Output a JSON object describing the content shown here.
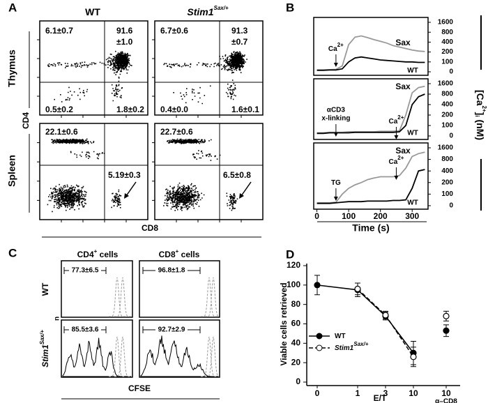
{
  "panel_a": {
    "letter": "A",
    "columns": [
      {
        "base": "WT"
      },
      {
        "base": "Stim1",
        "sup": "Sax/+"
      }
    ],
    "rows": [
      "Thymus",
      "Spleen"
    ],
    "y_label": "CD4",
    "x_label": "CD8",
    "plots": [
      {
        "labels": [
          [
            "6.1±0.7"
          ],
          [
            "91.6",
            "±1.0"
          ],
          [
            "0.5±0.2"
          ],
          [
            "1.8±0.2"
          ]
        ]
      },
      {
        "labels": [
          [
            "6.7±0.6"
          ],
          [
            "91.3",
            "±0.7"
          ],
          [
            "0.4±0.0"
          ],
          [
            "1.6±0.1"
          ]
        ]
      },
      {
        "labels": [
          [
            "22.1±0.6"
          ],
          [
            "5.19±0.3"
          ]
        ]
      },
      {
        "labels": [
          [
            "22.7±0.6"
          ],
          [
            "6.5±0.8"
          ]
        ]
      }
    ]
  },
  "panel_c": {
    "letter": "C",
    "columns": [
      {
        "base": "CD4",
        "sup": "+",
        "rest": " cells"
      },
      {
        "base": "CD8",
        "sup": "+",
        "rest": " cells"
      }
    ],
    "rows": [
      {
        "base": "WT"
      },
      {
        "base": "Stim1",
        "sup": "Sax/+"
      }
    ],
    "gates": [
      "77.3±6.5",
      "96.8±1.8",
      "85.5±3.6",
      "92.7±2.9"
    ],
    "y_label": "n",
    "x_label": "CFSE"
  },
  "chart_data": [
    {
      "type": "line",
      "letter": "B",
      "xlim": [
        -10,
        350
      ],
      "ylim": [
        0,
        1600
      ],
      "yticks": [
        0,
        100,
        200,
        400,
        800,
        1600
      ],
      "x": [
        0,
        20,
        40,
        60,
        80,
        100,
        120,
        140,
        160,
        180,
        200,
        220,
        240,
        260,
        280,
        300,
        320,
        340
      ],
      "series": [
        {
          "name": "Sax",
          "color": "#999999",
          "values": [
            20,
            20,
            22,
            25,
            60,
            350,
            600,
            650,
            580,
            500,
            430,
            380,
            330,
            300,
            270,
            240,
            220,
            210
          ]
        },
        {
          "name": "WT",
          "color": "#000000",
          "values": [
            15,
            15,
            18,
            18,
            30,
            100,
            140,
            150,
            140,
            130,
            120,
            115,
            110,
            105,
            100,
            100,
            95,
            95
          ]
        }
      ],
      "annotations": [
        {
          "text": "Ca",
          "sup": "2+",
          "x": 60
        }
      ]
    },
    {
      "type": "line",
      "xlim": [
        -10,
        350
      ],
      "ylim": [
        0,
        1600
      ],
      "yticks": [
        0,
        100,
        200,
        400,
        800,
        1600
      ],
      "ylabel": [
        "[Ca",
        "2+",
        "]",
        "i",
        " (nM)"
      ],
      "x": [
        0,
        20,
        40,
        60,
        80,
        100,
        120,
        140,
        160,
        180,
        200,
        220,
        240,
        260,
        280,
        300,
        320,
        340
      ],
      "series": [
        {
          "name": "Sax",
          "color": "#999999",
          "values": [
            30,
            30,
            35,
            35,
            35,
            40,
            40,
            40,
            40,
            40,
            45,
            45,
            45,
            50,
            200,
            900,
            1300,
            1400
          ]
        },
        {
          "name": "WT",
          "color": "#000000",
          "values": [
            25,
            25,
            30,
            30,
            30,
            30,
            35,
            35,
            35,
            35,
            35,
            35,
            35,
            40,
            100,
            400,
            700,
            800
          ]
        }
      ],
      "annotations": [
        {
          "lines": [
            "αCD3",
            "x-linking"
          ],
          "x": 60
        },
        {
          "text": "Ca",
          "sup": "2+",
          "x": 250
        }
      ]
    },
    {
      "type": "line",
      "xlim": [
        -10,
        350
      ],
      "ylim": [
        0,
        1600
      ],
      "yticks": [
        0,
        100,
        200,
        400,
        800,
        1600
      ],
      "xticks": [
        0,
        100,
        200,
        300
      ],
      "xlabel": "Time (s)",
      "x": [
        0,
        20,
        40,
        60,
        80,
        100,
        120,
        140,
        160,
        180,
        200,
        220,
        240,
        260,
        280,
        300,
        320,
        340
      ],
      "series": [
        {
          "name": "Sax",
          "color": "#999999",
          "values": [
            25,
            25,
            25,
            30,
            100,
            150,
            180,
            200,
            250,
            280,
            300,
            300,
            300,
            320,
            500,
            1000,
            1200,
            1300
          ]
        },
        {
          "name": "WT",
          "color": "#000000",
          "values": [
            20,
            20,
            20,
            25,
            30,
            35,
            35,
            35,
            40,
            40,
            40,
            40,
            45,
            45,
            50,
            150,
            400,
            450
          ]
        }
      ],
      "annotations": [
        {
          "text": "TG",
          "x": 60
        },
        {
          "text": "Ca",
          "sup": "2+",
          "x": 250
        }
      ]
    },
    {
      "type": "errorline",
      "letter": "D",
      "categories": [
        "0",
        "1",
        "3",
        "10",
        "10"
      ],
      "extra_label": "α–CD8",
      "xlabel": "E/T",
      "ylabel": "Viable cells retrieved",
      "ylim": [
        0,
        120
      ],
      "yticks": [
        0,
        20,
        40,
        60,
        80,
        100,
        120
      ],
      "series": [
        {
          "name": "WT",
          "color": "#000000",
          "marker_fill": "#000000",
          "dash": "none",
          "values": [
            100,
            95,
            68,
            30,
            53
          ],
          "errors": [
            10,
            7,
            4,
            12,
            6
          ]
        },
        {
          "name": "Stim1",
          "name_sup": "Sax/+",
          "color": "#000000",
          "marker_fill": "#ffffff",
          "dash": "6 3",
          "values": [
            null,
            96,
            69,
            26,
            68
          ],
          "errors": [
            null,
            6,
            4,
            10,
            5
          ]
        }
      ]
    }
  ]
}
